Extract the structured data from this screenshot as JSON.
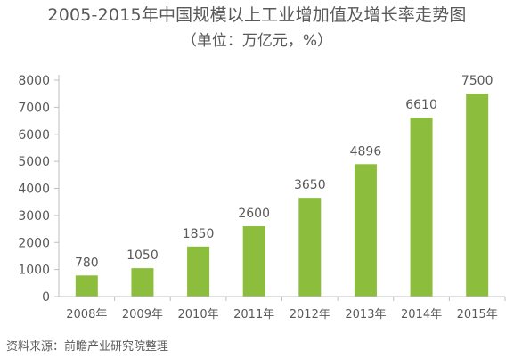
{
  "chart_data": {
    "type": "bar",
    "title": "2005-2015年中国规模以上工业增加值及增长率走势图",
    "subtitle": "（单位：万亿元，%）",
    "categories": [
      "2008年",
      "2009年",
      "2010年",
      "2011年",
      "2012年",
      "2013年",
      "2014年",
      "2015年"
    ],
    "values": [
      780,
      1050,
      1850,
      2600,
      3650,
      4896,
      6610,
      7500
    ],
    "value_labels": [
      "780",
      "1050",
      "1850",
      "2600",
      "3650",
      "4896",
      "6610",
      "7500"
    ],
    "ylim": [
      0,
      8000
    ],
    "yticks": [
      0,
      1000,
      2000,
      3000,
      4000,
      5000,
      6000,
      7000,
      8000
    ],
    "grid": false,
    "bar_color": "#8dbd3c",
    "axis_color": "#bfbfbf",
    "text_color": "#595959"
  },
  "source": "资料来源：前瞻产业研究院整理"
}
